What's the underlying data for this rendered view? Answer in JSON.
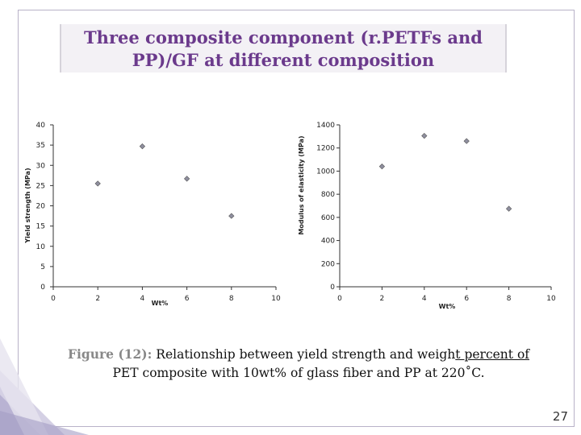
{
  "slide": {
    "title": "Three composite component (r.PETFs and\nPP)/GF at different composition",
    "caption_label": "Figure (12):",
    "caption_text_a": " Relationship between yield strength and weigh",
    "caption_text_u": "t percent of ",
    "caption_text_b": " PET composite with 10wt% of glass fiber and PP at 220˚C.",
    "page_number": "27",
    "colors": {
      "title": "#6b3a8c",
      "marker": "#8f8f9f",
      "axis": "#333333",
      "frame": "#b8b2c8"
    }
  },
  "chart_data": [
    {
      "type": "scatter",
      "title": "",
      "xlabel": "Wt%",
      "ylabel": "Yield strength (MPa)",
      "xlim": [
        0,
        10
      ],
      "ylim": [
        0,
        40
      ],
      "xticks": [
        0,
        2,
        4,
        6,
        8,
        10
      ],
      "yticks": [
        0,
        5,
        10,
        15,
        20,
        25,
        30,
        35,
        40
      ],
      "grid": false,
      "points": [
        {
          "x": 2,
          "y": 25.5
        },
        {
          "x": 4,
          "y": 34.7
        },
        {
          "x": 6,
          "y": 26.7
        },
        {
          "x": 8,
          "y": 17.5
        }
      ]
    },
    {
      "type": "scatter",
      "title": "",
      "xlabel": "Wt%",
      "ylabel": "Modulus of elasticity (MPa)",
      "xlim": [
        0,
        10
      ],
      "ylim": [
        0,
        1400
      ],
      "xticks": [
        0,
        2,
        4,
        6,
        8,
        10
      ],
      "yticks": [
        0,
        200,
        400,
        600,
        800,
        1000,
        1200,
        1400
      ],
      "grid": false,
      "points": [
        {
          "x": 2,
          "y": 1040
        },
        {
          "x": 4,
          "y": 1305
        },
        {
          "x": 6,
          "y": 1260
        },
        {
          "x": 8,
          "y": 675
        }
      ]
    }
  ]
}
